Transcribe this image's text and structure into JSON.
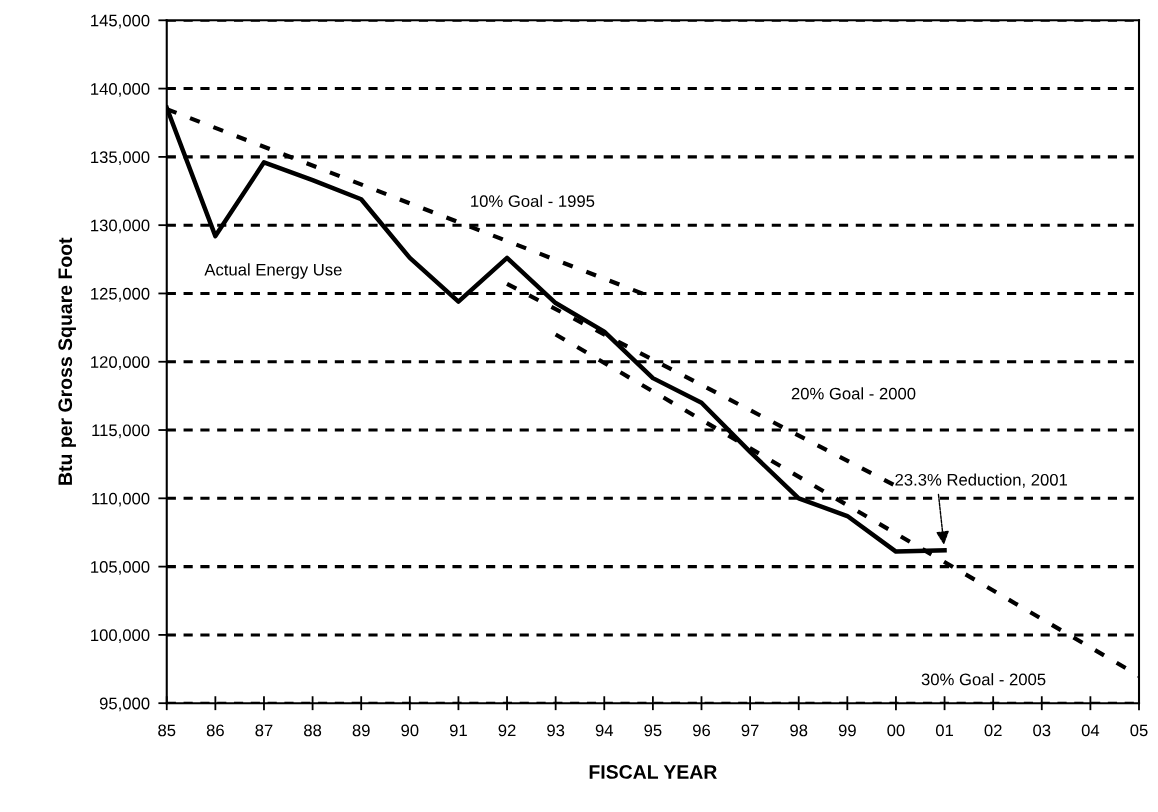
{
  "chart_data": {
    "type": "line",
    "xlabel": "FISCAL YEAR",
    "ylabel": "Btu per Gross Square Foot",
    "xlim": [
      1985,
      2005
    ],
    "ylim": [
      95000,
      145000
    ],
    "xticks": [
      {
        "value": 1985,
        "label": "85"
      },
      {
        "value": 1986,
        "label": "86"
      },
      {
        "value": 1987,
        "label": "87"
      },
      {
        "value": 1988,
        "label": "88"
      },
      {
        "value": 1989,
        "label": "89"
      },
      {
        "value": 1990,
        "label": "90"
      },
      {
        "value": 1991,
        "label": "91"
      },
      {
        "value": 1992,
        "label": "92"
      },
      {
        "value": 1993,
        "label": "93"
      },
      {
        "value": 1994,
        "label": "94"
      },
      {
        "value": 1995,
        "label": "95"
      },
      {
        "value": 1996,
        "label": "96"
      },
      {
        "value": 1997,
        "label": "97"
      },
      {
        "value": 1998,
        "label": "98"
      },
      {
        "value": 1999,
        "label": "99"
      },
      {
        "value": 2000,
        "label": "00"
      },
      {
        "value": 2001,
        "label": "01"
      },
      {
        "value": 2002,
        "label": "02"
      },
      {
        "value": 2003,
        "label": "03"
      },
      {
        "value": 2004,
        "label": "04"
      },
      {
        "value": 2005,
        "label": "05"
      }
    ],
    "yticks": [
      {
        "value": 95000,
        "label": "95,000"
      },
      {
        "value": 100000,
        "label": "100,000"
      },
      {
        "value": 105000,
        "label": "105,000"
      },
      {
        "value": 110000,
        "label": "110,000"
      },
      {
        "value": 115000,
        "label": "115,000"
      },
      {
        "value": 120000,
        "label": "120,000"
      },
      {
        "value": 125000,
        "label": "125,000"
      },
      {
        "value": 130000,
        "label": "130,000"
      },
      {
        "value": 135000,
        "label": "135,000"
      },
      {
        "value": 140000,
        "label": "140,000"
      },
      {
        "value": 145000,
        "label": "145,000"
      }
    ],
    "grid": "y",
    "marker": "none",
    "series": [
      {
        "name": "Actual Energy Use",
        "color": "#000000",
        "line_style": "solid",
        "x": [
          1985,
          1986,
          1987,
          1988,
          1989,
          1990,
          1991,
          1992,
          1993,
          1994,
          1995,
          1996,
          1997,
          1998,
          1999,
          2000,
          2001
        ],
        "values": [
          138600,
          129200,
          134600,
          133300,
          131900,
          127600,
          124400,
          127600,
          124300,
          122200,
          118800,
          117000,
          113400,
          110000,
          108700,
          106100,
          106200
        ]
      },
      {
        "name": "10% Goal - 1995",
        "color": "#000000",
        "line_style": "dashed",
        "x": [
          1985,
          1995
        ],
        "values": [
          138500,
          124700
        ]
      },
      {
        "name": "20% Goal - 2000",
        "color": "#000000",
        "line_style": "dashed",
        "x": [
          1992,
          2000
        ],
        "values": [
          125700,
          110900
        ]
      },
      {
        "name": "30% Goal - 2005",
        "color": "#000000",
        "line_style": "dashed",
        "x": [
          1993,
          2005
        ],
        "values": [
          122000,
          97000
        ]
      }
    ],
    "annotations": [
      {
        "text": "23.3% Reduction, 2001",
        "x": 2001,
        "y": 106200
      }
    ]
  }
}
